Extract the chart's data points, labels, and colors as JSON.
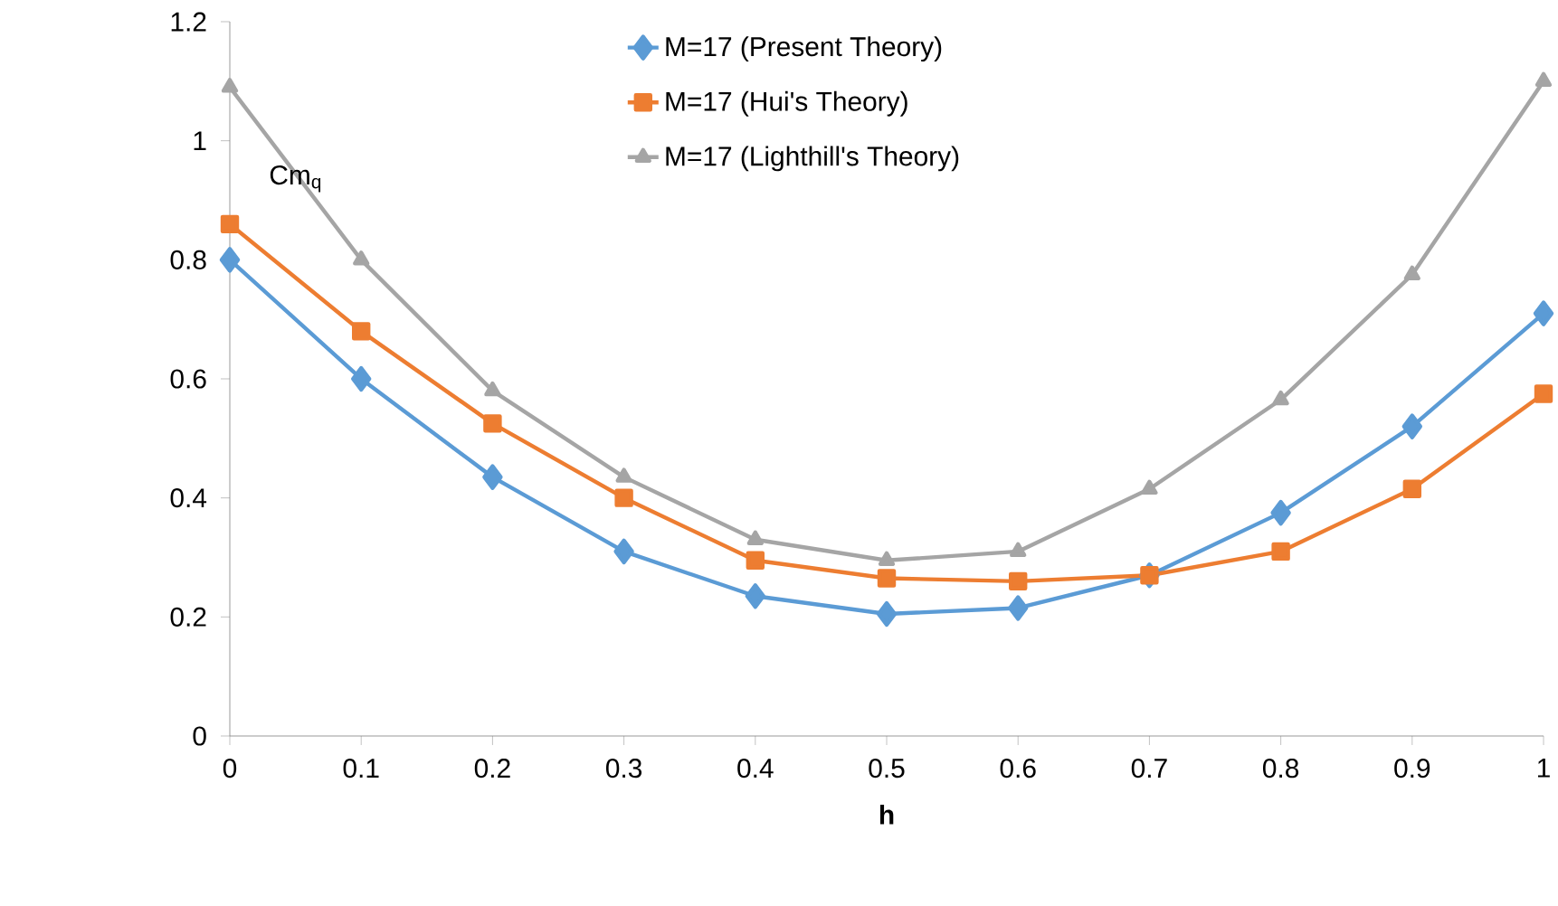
{
  "chart_data": {
    "type": "line",
    "xlabel": "h",
    "ylabel": "Cm$_{q}$",
    "x": [
      0,
      0.1,
      0.2,
      0.3,
      0.4,
      0.5,
      0.6,
      0.7,
      0.8,
      0.9,
      1
    ],
    "series": [
      {
        "name": "M=17 (Present Theory)",
        "color": "#5b9bd5",
        "marker": "diamond",
        "values": [
          0.8,
          0.6,
          0.435,
          0.31,
          0.235,
          0.205,
          0.215,
          0.27,
          0.375,
          0.52,
          0.71
        ]
      },
      {
        "name": "M=17 (Hui's Theory)",
        "color": "#ed7d31",
        "marker": "square",
        "values": [
          0.86,
          0.68,
          0.525,
          0.4,
          0.295,
          0.265,
          0.26,
          0.27,
          0.31,
          0.415,
          0.575
        ]
      },
      {
        "name": "M=17 (Lighthill's Theory)",
        "color": "#a5a5a5",
        "marker": "triangle",
        "values": [
          1.09,
          0.8,
          0.58,
          0.435,
          0.33,
          0.295,
          0.31,
          0.415,
          0.565,
          0.775,
          1.1
        ]
      }
    ],
    "xlim": [
      0,
      1
    ],
    "ylim": [
      0,
      1.2
    ],
    "xticks": [
      0,
      0.1,
      0.2,
      0.3,
      0.4,
      0.5,
      0.6,
      0.7,
      0.8,
      0.9,
      1
    ],
    "yticks": [
      0,
      0.2,
      0.4,
      0.6,
      0.8,
      1,
      1.2
    ],
    "grid": false,
    "legend": "top",
    "line_style": "solid"
  }
}
